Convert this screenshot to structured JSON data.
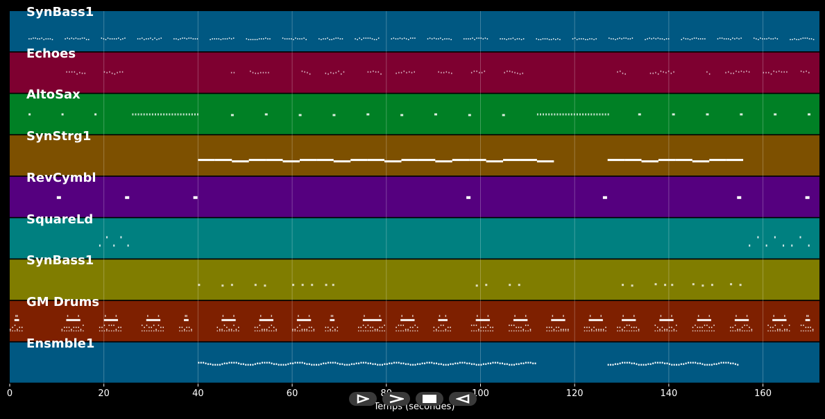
{
  "x_axis": {
    "label": "Temps (secondes)",
    "ticks": [
      "0",
      "20",
      "40",
      "60",
      "80",
      "100",
      "120",
      "140",
      "160"
    ],
    "max_seconds": 172
  },
  "tracks": [
    {
      "name": "SynBass1",
      "color": "#005882",
      "pattern": "bass"
    },
    {
      "name": "Echoes",
      "color": "#7e0030",
      "pattern": "echo"
    },
    {
      "name": "AltoSax",
      "color": "#008025",
      "pattern": "sax"
    },
    {
      "name": "SynStrg1",
      "color": "#7d5000",
      "pattern": "strings"
    },
    {
      "name": "RevCymbl",
      "color": "#55007f",
      "pattern": "cymbal"
    },
    {
      "name": "SquareLd",
      "color": "#008080",
      "pattern": "lead"
    },
    {
      "name": "SynBass1",
      "color": "#807d00",
      "pattern": "bass2"
    },
    {
      "name": "GM Drums",
      "color": "#7e2000",
      "pattern": "drums"
    },
    {
      "name": "Ensmble1",
      "color": "#005882",
      "pattern": "ensemble"
    }
  ],
  "controls": {
    "play_icon": "play-icon",
    "forward_icon": "forward-icon",
    "stop_icon": "stop-icon",
    "back_icon": "back-icon"
  }
}
